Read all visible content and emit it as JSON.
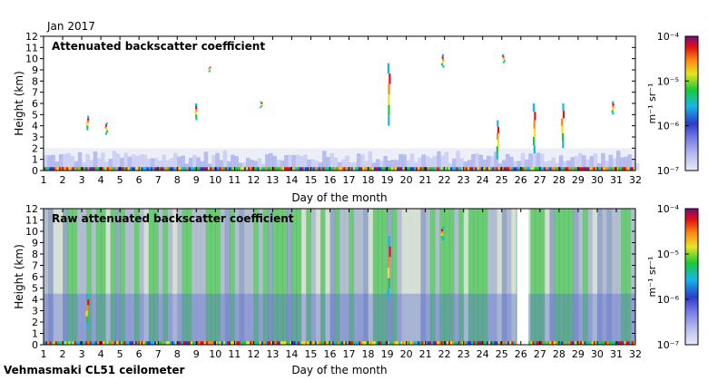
{
  "header": {
    "period": "Jan 2017"
  },
  "footer": {
    "instrument": "Vehmasmaki CL51 ceilometer"
  },
  "colorbar": {
    "unit": "m⁻¹ sr⁻¹",
    "ticks": [
      "10⁻⁷",
      "10⁻⁶",
      "10⁻⁵",
      "10⁻⁴"
    ],
    "colors": [
      "#e8e8f4",
      "#b8bcf0",
      "#6f78e6",
      "#2c3cc9",
      "#15b7e8",
      "#18c93a",
      "#e6e61f",
      "#ff8a10",
      "#e21010",
      "#7a0a7a"
    ]
  },
  "chart_data": [
    {
      "type": "heatmap",
      "title": "Attenuated backscatter coefficient",
      "xlabel": "Day of the month",
      "ylabel": "Height (km)",
      "xlim": [
        1,
        32
      ],
      "ylim": [
        0,
        12
      ],
      "xticks": [
        1,
        2,
        3,
        4,
        5,
        6,
        7,
        8,
        9,
        10,
        11,
        12,
        13,
        14,
        15,
        16,
        17,
        18,
        19,
        20,
        21,
        22,
        23,
        24,
        25,
        26,
        27,
        28,
        29,
        30,
        31,
        32
      ],
      "yticks": [
        0,
        1,
        2,
        3,
        4,
        5,
        6,
        7,
        8,
        9,
        10,
        11,
        12
      ],
      "color_scale": "log",
      "clim": [
        1e-07,
        0.0001
      ],
      "grid": false,
      "boundary_layer_top_km": 0.3,
      "missing_days": [],
      "cloud_features": [
        {
          "day": 3.3,
          "base_km": 3.6,
          "top_km": 4.9
        },
        {
          "day": 4.3,
          "base_km": 3.2,
          "top_km": 4.3
        },
        {
          "day": 9.0,
          "base_km": 4.5,
          "top_km": 6.0
        },
        {
          "day": 9.7,
          "base_km": 8.8,
          "top_km": 9.3
        },
        {
          "day": 12.4,
          "base_km": 5.6,
          "top_km": 6.2
        },
        {
          "day": 19.1,
          "base_km": 4.0,
          "top_km": 9.6
        },
        {
          "day": 21.9,
          "base_km": 9.2,
          "top_km": 10.4
        },
        {
          "day": 25.1,
          "base_km": 9.6,
          "top_km": 10.4
        },
        {
          "day": 24.8,
          "base_km": 1.0,
          "top_km": 4.5
        },
        {
          "day": 26.7,
          "base_km": 1.5,
          "top_km": 6.0
        },
        {
          "day": 28.2,
          "base_km": 2.0,
          "top_km": 6.0
        },
        {
          "day": 30.8,
          "base_km": 5.0,
          "top_km": 6.2
        }
      ]
    },
    {
      "type": "heatmap",
      "title": "Raw attenuated backscatter coefficient",
      "xlabel": "Day of the month",
      "ylabel": "Height (km)",
      "xlim": [
        1,
        32
      ],
      "ylim": [
        0,
        12
      ],
      "xticks": [
        1,
        2,
        3,
        4,
        5,
        6,
        7,
        8,
        9,
        10,
        11,
        12,
        13,
        14,
        15,
        16,
        17,
        18,
        19,
        20,
        21,
        22,
        23,
        24,
        25,
        26,
        27,
        28,
        29,
        30,
        31,
        32
      ],
      "yticks": [
        0,
        1,
        2,
        3,
        4,
        5,
        6,
        7,
        8,
        9,
        10,
        11,
        12
      ],
      "color_scale": "log",
      "clim": [
        1e-07,
        0.0001
      ],
      "grid": false,
      "boundary_layer_top_km": 0.3,
      "missing_days": [
        [
          25.8,
          26.4
        ]
      ],
      "cloud_features": [
        {
          "day": 3.3,
          "base_km": 1.5,
          "top_km": 4.5
        },
        {
          "day": 19.1,
          "base_km": 4.0,
          "top_km": 9.6
        },
        {
          "day": 21.9,
          "base_km": 9.2,
          "top_km": 10.4
        }
      ]
    }
  ]
}
